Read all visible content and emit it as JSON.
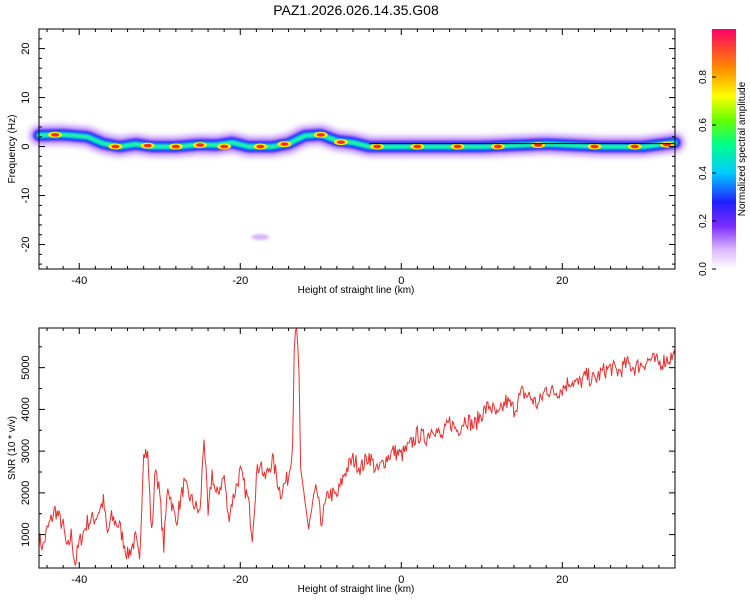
{
  "title": "PAZ1.2026.026.14.35.G08",
  "colors": {
    "snr_line": "#e83030",
    "axis": "#000000",
    "background": "#ffffff"
  },
  "chart_data": [
    {
      "type": "heatmap",
      "name": "spectrogram",
      "xlabel": "Height of straight line (km)",
      "ylabel": "Frequency (Hz)",
      "xlim": [
        -45,
        34
      ],
      "ylim": [
        -25,
        24
      ],
      "xticks": [
        -40,
        -20,
        0,
        20
      ],
      "yticks": [
        -20,
        -10,
        0,
        10,
        20
      ],
      "colorbar": {
        "label": "Normalized spectral amplitude",
        "range": [
          0,
          1
        ],
        "ticks": [
          "0.0",
          "0.2",
          "0.4",
          "0.6",
          "0.8"
        ]
      },
      "reference_line_freq": 0.6,
      "ridge": [
        {
          "x": -45,
          "f": 2.3
        },
        {
          "x": -42,
          "f": 2.4
        },
        {
          "x": -39,
          "f": 2.0
        },
        {
          "x": -37,
          "f": 0.6
        },
        {
          "x": -35,
          "f": 0.0
        },
        {
          "x": -33,
          "f": 0.5
        },
        {
          "x": -31,
          "f": 0.0
        },
        {
          "x": -28,
          "f": 0.0
        },
        {
          "x": -25,
          "f": 0.4
        },
        {
          "x": -23,
          "f": 0.3
        },
        {
          "x": -21,
          "f": 0.8
        },
        {
          "x": -19,
          "f": 0.0
        },
        {
          "x": -16,
          "f": 0.0
        },
        {
          "x": -14,
          "f": 0.6
        },
        {
          "x": -12,
          "f": 2.2
        },
        {
          "x": -10,
          "f": 2.4
        },
        {
          "x": -8,
          "f": 1.2
        },
        {
          "x": -6,
          "f": 0.8
        },
        {
          "x": -4,
          "f": 0.0
        },
        {
          "x": 0,
          "f": 0.0
        },
        {
          "x": 10,
          "f": 0.0
        },
        {
          "x": 18,
          "f": 0.5
        },
        {
          "x": 25,
          "f": 0.0
        },
        {
          "x": 30,
          "f": 0.0
        },
        {
          "x": 34,
          "f": 0.8
        }
      ],
      "peaks": [
        {
          "x": -43,
          "f": 2.4
        },
        {
          "x": -35.5,
          "f": 0.0
        },
        {
          "x": -31.5,
          "f": 0.2
        },
        {
          "x": -28,
          "f": 0.0
        },
        {
          "x": -25,
          "f": 0.3
        },
        {
          "x": -22,
          "f": 0.0
        },
        {
          "x": -17.5,
          "f": 0.0
        },
        {
          "x": -14.5,
          "f": 0.5
        },
        {
          "x": -10,
          "f": 2.4
        },
        {
          "x": -7.5,
          "f": 0.9
        },
        {
          "x": -3,
          "f": 0.0
        },
        {
          "x": 2,
          "f": 0.0
        },
        {
          "x": 7,
          "f": 0.0
        },
        {
          "x": 12,
          "f": 0.0
        },
        {
          "x": 17,
          "f": 0.3
        },
        {
          "x": 24,
          "f": 0.0
        },
        {
          "x": 29,
          "f": 0.0
        },
        {
          "x": 33,
          "f": 0.4
        }
      ],
      "isolated_blob": {
        "x": -17.5,
        "f": -18.5
      }
    },
    {
      "type": "line",
      "name": "snr",
      "xlabel": "Height of straight line (km)",
      "ylabel": "SNR (10 * v/v)",
      "xlim": [
        -45,
        34
      ],
      "ylim": [
        200,
        5950
      ],
      "xticks": [
        -40,
        -20,
        0,
        20
      ],
      "yticks": [
        1000,
        2000,
        3000,
        4000,
        5000
      ],
      "series": [
        {
          "name": "SNR",
          "x": [
            -45,
            -44.5,
            -44,
            -43,
            -42,
            -41.5,
            -41,
            -40.5,
            -40,
            -39,
            -38,
            -37,
            -36.5,
            -36,
            -35,
            -34,
            -33,
            -32.5,
            -32,
            -31.5,
            -31,
            -30.5,
            -30,
            -29.5,
            -29,
            -28,
            -27,
            -26,
            -25,
            -24.5,
            -24,
            -23.5,
            -23,
            -22,
            -21.5,
            -21,
            -20,
            -19,
            -18.5,
            -18,
            -17.5,
            -17,
            -16,
            -15,
            -14,
            -13.5,
            -13.3,
            -13,
            -12.7,
            -12.5,
            -12,
            -11.5,
            -11,
            -10.5,
            -10,
            -9,
            -8,
            -7,
            -6,
            -5,
            -4,
            -3,
            -2,
            -1,
            0,
            1,
            2,
            3,
            4,
            5,
            6,
            7,
            8,
            9,
            10,
            11,
            12,
            13,
            14,
            15,
            16,
            17,
            18,
            19,
            20,
            21,
            22,
            23,
            24,
            25,
            26,
            27,
            28,
            29,
            30,
            31,
            32,
            33,
            34
          ],
          "values": [
            900,
            700,
            1100,
            1600,
            1200,
            600,
            1000,
            300,
            800,
            1300,
            1400,
            1800,
            1000,
            1400,
            1200,
            500,
            900,
            300,
            3100,
            2900,
            1000,
            2700,
            1900,
            700,
            2200,
            1300,
            2200,
            1800,
            1500,
            3400,
            1400,
            2500,
            1900,
            2400,
            1400,
            1800,
            2500,
            1800,
            1000,
            2400,
            2800,
            2300,
            2800,
            2000,
            2400,
            3200,
            5500,
            5900,
            4900,
            2400,
            1900,
            1100,
            1700,
            2100,
            1300,
            2000,
            1900,
            2500,
            2800,
            2600,
            2900,
            2500,
            2800,
            3000,
            2900,
            3100,
            3400,
            3300,
            3600,
            3300,
            3700,
            3500,
            3800,
            3600,
            3900,
            4100,
            3800,
            4200,
            4000,
            4400,
            4300,
            4100,
            4500,
            4400,
            4500,
            4700,
            4600,
            4800,
            4700,
            4900,
            5000,
            4900,
            5100,
            5000,
            5100,
            5200,
            5100,
            5200,
            5300
          ]
        }
      ]
    }
  ]
}
